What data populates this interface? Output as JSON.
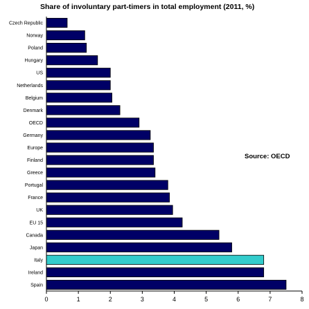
{
  "chart_data": {
    "type": "bar",
    "orientation": "horizontal",
    "title": "Share of involuntary part-timers in total employment (2011, %)",
    "annotation": "Source: OECD",
    "categories": [
      "Czech Republic",
      "Norway",
      "Poland",
      "Hungary",
      "US",
      "Netherlands",
      "Belgium",
      "Denmark",
      "OECD",
      "Germany",
      "Europe",
      "Finland",
      "Greece",
      "Portugal",
      "France",
      "UK",
      "EU 15",
      "Canada",
      "Japan",
      "Italy",
      "Ireland",
      "Spain"
    ],
    "values": [
      0.65,
      1.2,
      1.25,
      1.6,
      2.0,
      2.0,
      2.05,
      2.3,
      2.9,
      3.25,
      3.35,
      3.35,
      3.4,
      3.8,
      3.85,
      3.95,
      4.25,
      5.4,
      5.8,
      6.8,
      6.8,
      7.5
    ],
    "highlight": "Italy",
    "xlim": [
      0,
      8
    ],
    "xticks": [
      0,
      1,
      2,
      3,
      4,
      5,
      6,
      7,
      8
    ],
    "grid": false,
    "legend": false,
    "colors": {
      "bar": "#000066",
      "bar_highlight": "#33cccc",
      "bar_outline": "#000000",
      "axis": "#000000"
    }
  }
}
